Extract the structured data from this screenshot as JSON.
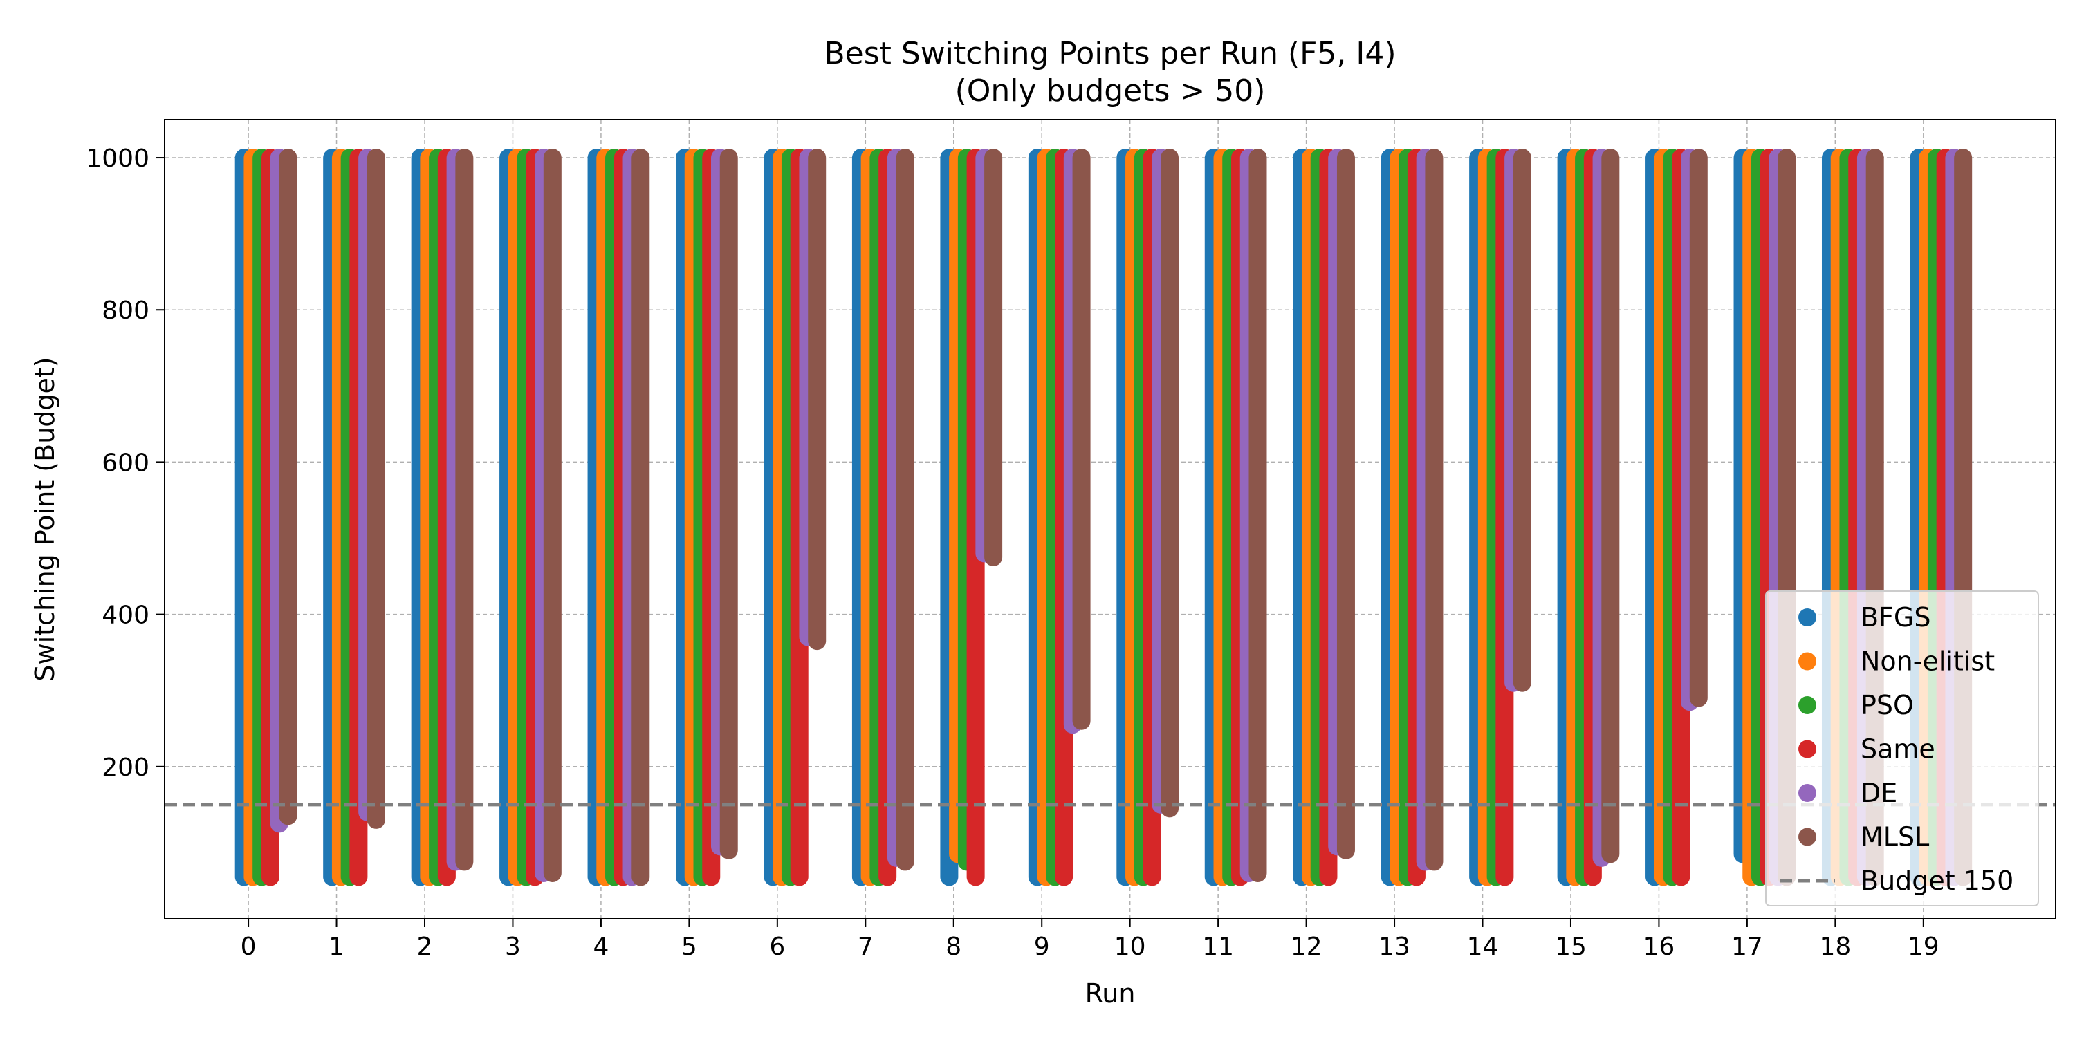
{
  "chart_data": {
    "type": "scatter",
    "title": "Best Switching Points per Run (F5, I4)",
    "subtitle": "(Only budgets > 50)",
    "xlabel": "Run",
    "ylabel": "Switching Point (Budget)",
    "x_ticks": [
      "0",
      "1",
      "2",
      "3",
      "4",
      "5",
      "6",
      "7",
      "8",
      "9",
      "10",
      "11",
      "12",
      "13",
      "14",
      "15",
      "16",
      "17",
      "18",
      "19"
    ],
    "y_ticks": [
      200,
      400,
      600,
      800,
      1000
    ],
    "ylim": [
      0,
      1050
    ],
    "xlim": [
      -0.95,
      20.5
    ],
    "grid": true,
    "legend_position": "lower right",
    "series": [
      {
        "name": "BFGS",
        "color": "#1f77b4",
        "offset": -0.05,
        "ranges": [
          [
            55,
            1000
          ],
          [
            55,
            1000
          ],
          [
            55,
            1000
          ],
          [
            55,
            1000
          ],
          [
            55,
            1000
          ],
          [
            55,
            1000
          ],
          [
            55,
            1000
          ],
          [
            55,
            1000
          ],
          [
            55,
            1000
          ],
          [
            55,
            1000
          ],
          [
            55,
            1000
          ],
          [
            55,
            1000
          ],
          [
            55,
            1000
          ],
          [
            55,
            1000
          ],
          [
            55,
            1000
          ],
          [
            55,
            1000
          ],
          [
            55,
            1000
          ],
          [
            85,
            1000
          ],
          [
            55,
            1000
          ],
          [
            55,
            1000
          ]
        ]
      },
      {
        "name": "Non-elitist",
        "color": "#ff7f0e",
        "offset": 0.05,
        "ranges": [
          [
            55,
            1000
          ],
          [
            55,
            1000
          ],
          [
            55,
            1000
          ],
          [
            55,
            1000
          ],
          [
            55,
            1000
          ],
          [
            55,
            1000
          ],
          [
            55,
            1000
          ],
          [
            55,
            1000
          ],
          [
            85,
            1000
          ],
          [
            55,
            1000
          ],
          [
            55,
            1000
          ],
          [
            55,
            1000
          ],
          [
            55,
            1000
          ],
          [
            55,
            1000
          ],
          [
            55,
            1000
          ],
          [
            55,
            1000
          ],
          [
            55,
            1000
          ],
          [
            55,
            1000
          ],
          [
            55,
            1000
          ],
          [
            55,
            1000
          ]
        ]
      },
      {
        "name": "PSO",
        "color": "#2ca02c",
        "offset": 0.15,
        "ranges": [
          [
            55,
            1000
          ],
          [
            55,
            1000
          ],
          [
            55,
            1000
          ],
          [
            55,
            1000
          ],
          [
            55,
            1000
          ],
          [
            55,
            1000
          ],
          [
            55,
            1000
          ],
          [
            55,
            1000
          ],
          [
            75,
            1000
          ],
          [
            55,
            1000
          ],
          [
            55,
            1000
          ],
          [
            55,
            1000
          ],
          [
            55,
            1000
          ],
          [
            55,
            1000
          ],
          [
            55,
            1000
          ],
          [
            55,
            1000
          ],
          [
            55,
            1000
          ],
          [
            55,
            1000
          ],
          [
            55,
            1000
          ],
          [
            55,
            1000
          ]
        ]
      },
      {
        "name": "Same",
        "color": "#d62728",
        "offset": 0.25,
        "ranges": [
          [
            55,
            1000
          ],
          [
            55,
            1000
          ],
          [
            55,
            1000
          ],
          [
            55,
            1000
          ],
          [
            55,
            1000
          ],
          [
            55,
            1000
          ],
          [
            55,
            1000
          ],
          [
            55,
            1000
          ],
          [
            55,
            1000
          ],
          [
            55,
            1000
          ],
          [
            55,
            1000
          ],
          [
            55,
            1000
          ],
          [
            55,
            1000
          ],
          [
            55,
            1000
          ],
          [
            55,
            1000
          ],
          [
            55,
            1000
          ],
          [
            55,
            1000
          ],
          [
            55,
            1000
          ],
          [
            55,
            1000
          ],
          [
            55,
            1000
          ]
        ]
      },
      {
        "name": "DE",
        "color": "#9467bd",
        "offset": 0.35,
        "ranges": [
          [
            125,
            1000
          ],
          [
            140,
            1000
          ],
          [
            75,
            1000
          ],
          [
            60,
            1000
          ],
          [
            55,
            1000
          ],
          [
            95,
            1000
          ],
          [
            370,
            1000
          ],
          [
            80,
            1000
          ],
          [
            480,
            1000
          ],
          [
            255,
            1000
          ],
          [
            150,
            1000
          ],
          [
            60,
            1000
          ],
          [
            95,
            1000
          ],
          [
            75,
            1000
          ],
          [
            310,
            1000
          ],
          [
            80,
            1000
          ],
          [
            285,
            1000
          ],
          [
            55,
            1000
          ],
          [
            55,
            1000
          ],
          [
            55,
            1000
          ]
        ]
      },
      {
        "name": "MLSL",
        "color": "#8c564b",
        "offset": 0.45,
        "ranges": [
          [
            135,
            1000
          ],
          [
            130,
            1000
          ],
          [
            75,
            1000
          ],
          [
            60,
            1000
          ],
          [
            55,
            1000
          ],
          [
            90,
            1000
          ],
          [
            365,
            1000
          ],
          [
            75,
            1000
          ],
          [
            475,
            1000
          ],
          [
            260,
            1000
          ],
          [
            145,
            1000
          ],
          [
            60,
            1000
          ],
          [
            90,
            1000
          ],
          [
            75,
            1000
          ],
          [
            310,
            1000
          ],
          [
            85,
            1000
          ],
          [
            290,
            1000
          ],
          [
            55,
            1000
          ],
          [
            55,
            1000
          ],
          [
            55,
            1000
          ]
        ]
      }
    ],
    "reference_lines": [
      {
        "name": "Budget 150",
        "y": 150,
        "color": "#808080",
        "style": "dashed"
      }
    ]
  }
}
